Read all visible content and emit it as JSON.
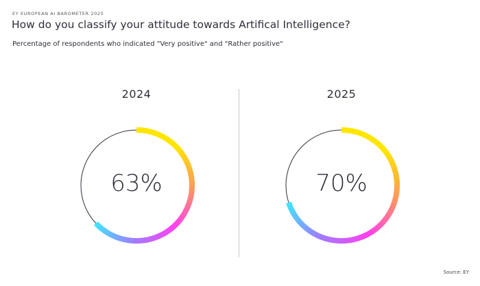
{
  "kicker": "EY EUROPEAN AI BAROMETER 2025",
  "title": "How do you classify your attitude towards Artifical Intelligence?",
  "subtitle": "Percentage of respondents who indicated \"Very positive\" and \"Rather positive\"",
  "source": "Source: EY",
  "chart_data": [
    {
      "type": "pie",
      "variant": "donut-gauge",
      "label": "2024",
      "value": 63,
      "value_label": "63%",
      "max": 100
    },
    {
      "type": "pie",
      "variant": "donut-gauge",
      "label": "2025",
      "value": 70,
      "value_label": "70%",
      "max": 100
    }
  ],
  "colors": {
    "track": "#2e2e38",
    "gradient": [
      "#ffe600",
      "#ffe600",
      "#ff9a5a",
      "#ff3ff0",
      "#a07cff",
      "#3ee8ff"
    ]
  }
}
